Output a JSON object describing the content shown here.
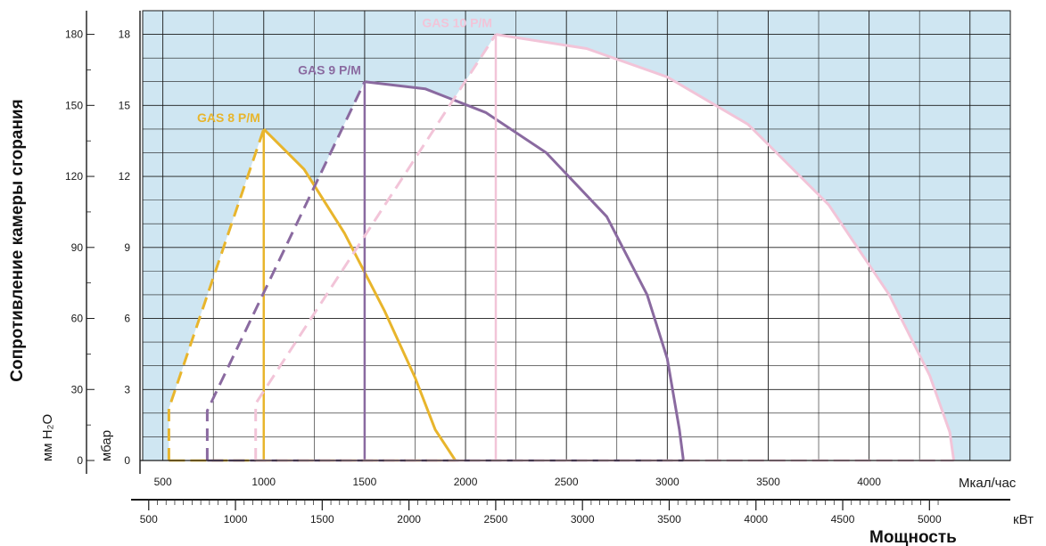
{
  "chart_data": {
    "type": "area",
    "xlabel": "Мощность",
    "ylabel": "Сопротивление камеры сгорания",
    "x_units": [
      "Мкал/час",
      "кВт"
    ],
    "y_units": [
      "мм H₂O",
      "мбар"
    ],
    "x_mcal_ticks": [
      500,
      1000,
      1500,
      2000,
      2500,
      3000,
      3500,
      4000
    ],
    "x_kw_ticks": [
      500,
      1000,
      1500,
      2000,
      2500,
      3000,
      3500,
      4000,
      4500,
      5000
    ],
    "y_mbar_ticks": [
      0,
      3,
      6,
      9,
      12,
      15,
      18
    ],
    "y_mmh2o_ticks": [
      0,
      30,
      60,
      90,
      120,
      150,
      180
    ],
    "xlim_mcal": [
      400,
      4700
    ],
    "ylim_mbar": [
      0,
      19
    ],
    "grid": true,
    "colors": {
      "background": "#cfe6f2",
      "grid": "#1a1a1a",
      "gas8": "#e8b52c",
      "gas9": "#8a6aa0",
      "gas10": "#f2c4d8",
      "region_fill": "#ffffff"
    },
    "series": [
      {
        "name": "GAS 8 P/M",
        "color": "#e8b52c",
        "start_dashed": [
          [
            530,
            0
          ],
          [
            530,
            2.2
          ],
          [
            1000,
            14
          ]
        ],
        "curve": [
          [
            1000,
            14
          ],
          [
            1200,
            12.3
          ],
          [
            1400,
            9.6
          ],
          [
            1600,
            6.3
          ],
          [
            1750,
            3.5
          ],
          [
            1850,
            1.3
          ],
          [
            1950,
            0
          ]
        ],
        "vertical_x": 1000
      },
      {
        "name": "GAS 9 P/M",
        "color": "#8a6aa0",
        "start_dashed": [
          [
            720,
            0
          ],
          [
            720,
            2.1
          ],
          [
            1500,
            16
          ]
        ],
        "curve": [
          [
            1500,
            16
          ],
          [
            1800,
            15.7
          ],
          [
            2100,
            14.7
          ],
          [
            2400,
            13
          ],
          [
            2700,
            10.3
          ],
          [
            2900,
            7
          ],
          [
            3000,
            4.3
          ],
          [
            3060,
            1.3
          ],
          [
            3080,
            0
          ]
        ],
        "vertical_x": 1500
      },
      {
        "name": "GAS 10 P/M",
        "color": "#f2c4d8",
        "start_dashed": [
          [
            960,
            0
          ],
          [
            960,
            2.4
          ],
          [
            2150,
            18
          ]
        ],
        "curve": [
          [
            2150,
            18
          ],
          [
            2600,
            17.4
          ],
          [
            3000,
            16.2
          ],
          [
            3400,
            14.2
          ],
          [
            3800,
            10.8
          ],
          [
            4100,
            7
          ],
          [
            4300,
            3.6
          ],
          [
            4400,
            1.2
          ],
          [
            4420,
            0
          ]
        ],
        "vertical_x": 2150
      }
    ]
  }
}
